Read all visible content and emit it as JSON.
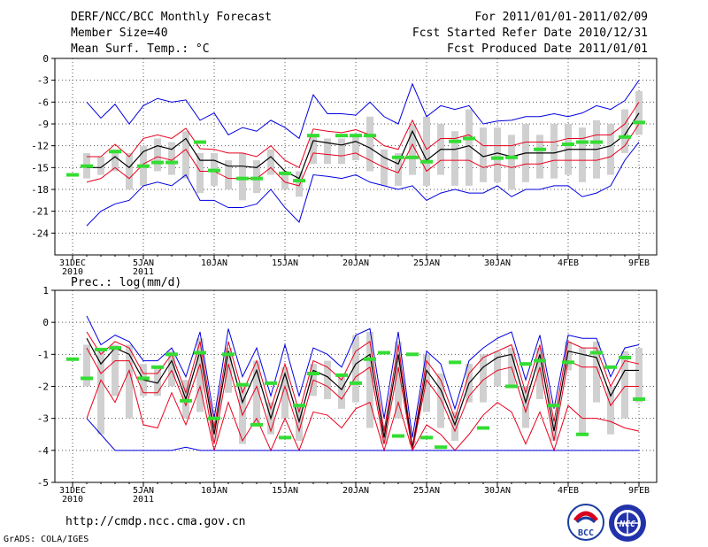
{
  "header": {
    "title": "DERF/NCC/BCC Monthly Forecast",
    "member_size": "Member Size=40",
    "variable": "Mean Surf. Temp.: °C",
    "period": "For 2011/01/01-2011/02/09",
    "started": "Fcst Started Refer Date 2010/12/31",
    "produced": "Fcst Produced Date 2011/01/01"
  },
  "footer": {
    "url": "http://cmdp.ncc.cma.gov.cn",
    "grads": "GrADS: COLA/IGES"
  },
  "logos": {
    "bcc_text": "BCC",
    "ncc_text": "NCC"
  },
  "colors": {
    "mean": "#000000",
    "spread": "#e8001c",
    "envelope": "#0000e0",
    "box": "#d0d0d0",
    "observed": "#33dd33",
    "grid": "#555555"
  },
  "chart_data": [
    {
      "type": "line",
      "title": "Mean Surf. Temp.: °C",
      "xlabel": "",
      "ylabel": "°C",
      "ylim": [
        -27,
        0
      ],
      "yticks": [
        0,
        -3,
        -6,
        -9,
        -12,
        -15,
        -18,
        -21,
        -24
      ],
      "x_tick_labels": [
        {
          "day": 1,
          "line1": "31DEC",
          "line2": "2010"
        },
        {
          "day": 6,
          "line1": "5JAN",
          "line2": "2011"
        },
        {
          "day": 11,
          "line1": "10JAN",
          "line2": ""
        },
        {
          "day": 16,
          "line1": "15JAN",
          "line2": ""
        },
        {
          "day": 21,
          "line1": "20JAN",
          "line2": ""
        },
        {
          "day": 26,
          "line1": "25JAN",
          "line2": ""
        },
        {
          "day": 31,
          "line1": "30JAN",
          "line2": ""
        },
        {
          "day": 36,
          "line1": "4FEB",
          "line2": ""
        },
        {
          "day": 41,
          "line1": "9FEB",
          "line2": ""
        }
      ],
      "days": [
        2,
        3,
        4,
        5,
        6,
        7,
        8,
        9,
        10,
        11,
        12,
        13,
        14,
        15,
        16,
        17,
        18,
        19,
        20,
        21,
        22,
        23,
        24,
        25,
        26,
        27,
        28,
        29,
        30,
        31,
        32,
        33,
        34,
        35,
        36,
        37,
        38,
        39,
        40,
        41
      ],
      "series": [
        {
          "name": "ensemble max",
          "color_key": "envelope",
          "values": [
            -6.0,
            -8.2,
            -6.3,
            -9.0,
            -6.5,
            -5.5,
            -6.0,
            -5.7,
            -8.5,
            -7.5,
            -10.5,
            -9.5,
            -10.0,
            -8.5,
            -9.5,
            -11.0,
            -5.0,
            -7.6,
            -7.6,
            -7.8,
            -6.0,
            -8.0,
            -9.0,
            -3.5,
            -8.0,
            -6.5,
            -7.0,
            -6.5,
            -9.0,
            -8.6,
            -8.5,
            -8.0,
            -8.0,
            -7.6,
            -8.0,
            -7.5,
            -6.5,
            -7.0,
            -5.8,
            -3.0
          ]
        },
        {
          "name": "upper spread",
          "color_key": "spread",
          "values": [
            -13.5,
            -13.5,
            -11.8,
            -13.5,
            -11.0,
            -10.5,
            -11.0,
            -9.6,
            -12.4,
            -12.5,
            -13.0,
            -13.0,
            -13.5,
            -12.0,
            -14.0,
            -15.0,
            -9.7,
            -10.0,
            -10.2,
            -9.8,
            -10.5,
            -12.0,
            -12.5,
            -8.5,
            -12.5,
            -11.0,
            -11.0,
            -10.5,
            -12.0,
            -12.0,
            -12.0,
            -11.5,
            -11.5,
            -11.5,
            -11.0,
            -11.0,
            -10.5,
            -10.5,
            -9.0,
            -6.0
          ]
        },
        {
          "name": "ensemble mean",
          "color_key": "mean",
          "values": [
            -15.0,
            -15.0,
            -13.5,
            -15.0,
            -12.8,
            -12.0,
            -12.5,
            -11.0,
            -14.0,
            -14.0,
            -14.8,
            -14.8,
            -15.0,
            -13.5,
            -15.5,
            -16.5,
            -11.3,
            -11.6,
            -11.9,
            -11.4,
            -12.3,
            -13.6,
            -14.5,
            -10.0,
            -14.0,
            -12.5,
            -12.5,
            -12.0,
            -13.5,
            -13.0,
            -13.5,
            -13.0,
            -13.0,
            -13.0,
            -12.5,
            -12.5,
            -12.5,
            -12.0,
            -10.5,
            -7.5
          ]
        },
        {
          "name": "lower spread",
          "color_key": "spread",
          "values": [
            -17.0,
            -16.5,
            -15.0,
            -16.5,
            -14.5,
            -13.5,
            -14.0,
            -12.5,
            -15.5,
            -15.5,
            -16.5,
            -16.5,
            -16.5,
            -15.0,
            -17.0,
            -17.5,
            -13.0,
            -13.2,
            -13.4,
            -13.0,
            -14.0,
            -15.0,
            -15.7,
            -11.8,
            -15.5,
            -14.0,
            -14.0,
            -14.0,
            -15.0,
            -14.5,
            -15.0,
            -14.5,
            -14.5,
            -14.0,
            -14.0,
            -14.0,
            -14.0,
            -13.5,
            -12.0,
            -9.0
          ]
        },
        {
          "name": "ensemble min",
          "color_key": "envelope",
          "values": [
            -23.0,
            -21.0,
            -20.0,
            -19.5,
            -17.5,
            -17.0,
            -17.5,
            -16.0,
            -19.5,
            -19.5,
            -20.5,
            -20.5,
            -20.0,
            -18.0,
            -20.5,
            -22.5,
            -16.0,
            -16.2,
            -16.5,
            -16.0,
            -17.0,
            -17.5,
            -18.0,
            -17.5,
            -19.5,
            -18.5,
            -18.0,
            -18.5,
            -18.5,
            -17.5,
            -19.0,
            -18.0,
            -18.0,
            -17.5,
            -17.5,
            -19.0,
            -18.5,
            -17.5,
            -14.0,
            -11.5
          ]
        }
      ],
      "box_range": {
        "low": [
          -16.5,
          -16.0,
          -15.5,
          -18.0,
          -17.5,
          -15.5,
          -16.0,
          -16.5,
          -18.5,
          -17.5,
          -18.0,
          -19.5,
          -18.5,
          -16.0,
          -18.0,
          -19.0,
          -14.5,
          -14.5,
          -14.5,
          -14.0,
          -15.5,
          -17.5,
          -17.5,
          -16.0,
          -17.5,
          -16.0,
          -17.5,
          -17.5,
          -17.0,
          -17.0,
          -18.0,
          -17.0,
          -16.5,
          -16.5,
          -16.0,
          -17.0,
          -16.5,
          -16.0,
          -13.0,
          -10.5
        ],
        "high": [
          -13.0,
          -13.5,
          -12.5,
          -13.0,
          -12.0,
          -11.0,
          -11.5,
          -10.0,
          -13.0,
          -13.0,
          -14.0,
          -13.0,
          -14.0,
          -12.5,
          -15.5,
          -15.5,
          -10.5,
          -11.0,
          -11.0,
          -10.5,
          -8.0,
          -12.5,
          -13.0,
          -9.0,
          -8.0,
          -9.0,
          -10.0,
          -7.0,
          -9.5,
          -9.5,
          -10.5,
          -9.0,
          -10.5,
          -9.0,
          -9.0,
          -9.5,
          -8.5,
          -9.0,
          -7.0,
          -4.5
        ]
      },
      "observed_days": [
        1,
        2,
        4,
        6,
        7,
        8,
        10,
        11,
        13,
        14,
        16,
        17,
        18,
        20,
        21,
        22,
        24,
        25,
        26,
        28,
        29,
        31,
        32,
        34,
        36,
        37,
        38,
        40,
        41
      ],
      "observed_values": [
        -16.0,
        -14.8,
        -12.8,
        -14.8,
        -14.3,
        -14.3,
        -11.5,
        -15.4,
        -16.5,
        -16.5,
        -15.8,
        -16.8,
        -10.6,
        -10.6,
        -10.6,
        -10.6,
        -13.6,
        -13.6,
        -14.2,
        -11.4,
        -11.0,
        -13.7,
        -13.6,
        -12.5,
        -11.8,
        -11.5,
        -11.5,
        -10.8,
        -8.8
      ]
    },
    {
      "type": "line",
      "title": "Prec.: log(mm/d)",
      "xlabel": "",
      "ylabel": "log(mm/d)",
      "ylim": [
        -5,
        1
      ],
      "yticks": [
        1,
        0,
        -1,
        -2,
        -3,
        -4,
        -5
      ],
      "x_tick_labels": [
        {
          "day": 1,
          "line1": "31DEC",
          "line2": "2010"
        },
        {
          "day": 6,
          "line1": "5JAN",
          "line2": "2011"
        },
        {
          "day": 11,
          "line1": "10JAN",
          "line2": ""
        },
        {
          "day": 16,
          "line1": "15JAN",
          "line2": ""
        },
        {
          "day": 21,
          "line1": "20JAN",
          "line2": ""
        },
        {
          "day": 26,
          "line1": "25JAN",
          "line2": ""
        },
        {
          "day": 31,
          "line1": "30JAN",
          "line2": ""
        },
        {
          "day": 36,
          "line1": "4FEB",
          "line2": ""
        },
        {
          "day": 41,
          "line1": "9FEB",
          "line2": ""
        }
      ],
      "days": [
        2,
        3,
        4,
        5,
        6,
        7,
        8,
        9,
        10,
        11,
        12,
        13,
        14,
        15,
        16,
        17,
        18,
        19,
        20,
        21,
        22,
        23,
        24,
        25,
        26,
        27,
        28,
        29,
        30,
        31,
        32,
        33,
        34,
        35,
        36,
        37,
        38,
        39,
        40,
        41
      ],
      "series": [
        {
          "name": "ensemble max",
          "color_key": "envelope",
          "values": [
            0.2,
            -0.7,
            -0.4,
            -0.6,
            -1.2,
            -1.2,
            -0.8,
            -1.7,
            -0.3,
            -3.0,
            -0.2,
            -1.7,
            -0.8,
            -2.3,
            -0.7,
            -2.3,
            -0.8,
            -1.0,
            -1.4,
            -0.4,
            -0.2,
            -3.0,
            -0.3,
            -3.6,
            -0.9,
            -1.3,
            -2.7,
            -1.2,
            -0.8,
            -0.5,
            -0.3,
            -1.8,
            -0.4,
            -2.7,
            -0.4,
            -0.5,
            -0.5,
            -1.7,
            -0.8,
            -0.7
          ]
        },
        {
          "name": "upper spread",
          "color_key": "spread",
          "values": [
            -0.3,
            -1.0,
            -0.6,
            -0.8,
            -1.6,
            -1.6,
            -1.0,
            -2.2,
            -0.6,
            -3.3,
            -0.6,
            -2.2,
            -1.2,
            -2.7,
            -1.3,
            -2.8,
            -1.2,
            -1.4,
            -1.8,
            -0.9,
            -0.6,
            -3.4,
            -0.7,
            -3.9,
            -1.2,
            -1.8,
            -3.0,
            -1.6,
            -1.1,
            -0.9,
            -0.7,
            -2.2,
            -0.7,
            -3.1,
            -0.6,
            -0.8,
            -0.8,
            -2.0,
            -1.2,
            -1.3
          ]
        },
        {
          "name": "ensemble mean",
          "color_key": "mean",
          "values": [
            -0.5,
            -1.3,
            -0.8,
            -1.0,
            -1.8,
            -1.9,
            -1.2,
            -2.4,
            -0.9,
            -3.5,
            -0.9,
            -2.5,
            -1.5,
            -3.0,
            -1.6,
            -3.1,
            -1.5,
            -1.7,
            -2.1,
            -1.3,
            -1.0,
            -3.6,
            -1.0,
            -3.95,
            -1.5,
            -2.1,
            -3.2,
            -1.9,
            -1.4,
            -1.1,
            -1.0,
            -2.5,
            -1.0,
            -3.4,
            -0.9,
            -1.0,
            -1.1,
            -2.3,
            -1.5,
            -1.5
          ]
        },
        {
          "name": "lower spread",
          "color_key": "spread",
          "values": [
            -0.8,
            -1.6,
            -1.2,
            -1.2,
            -2.2,
            -2.2,
            -1.5,
            -2.6,
            -1.3,
            -3.8,
            -1.3,
            -2.9,
            -2.0,
            -3.4,
            -2.0,
            -3.4,
            -1.8,
            -2.0,
            -2.4,
            -1.7,
            -1.4,
            -3.8,
            -1.4,
            -4.0,
            -1.8,
            -2.4,
            -3.4,
            -2.3,
            -1.8,
            -1.5,
            -1.4,
            -2.8,
            -1.4,
            -3.7,
            -1.2,
            -1.4,
            -1.4,
            -2.6,
            -2.0,
            -2.0
          ]
        },
        {
          "name": "lower spread 2",
          "color_key": "spread",
          "values": [
            -3.0,
            -1.8,
            -2.5,
            -1.5,
            -3.2,
            -3.3,
            -2.2,
            -3.2,
            -2.0,
            -4.0,
            -2.5,
            -3.7,
            -3.0,
            -4.0,
            -3.0,
            -4.0,
            -2.8,
            -2.9,
            -3.3,
            -2.7,
            -2.5,
            -4.0,
            -2.5,
            -4.0,
            -3.2,
            -3.5,
            -4.0,
            -3.5,
            -2.9,
            -2.5,
            -2.8,
            -3.8,
            -2.8,
            -4.0,
            -2.6,
            -3.0,
            -3.0,
            -3.1,
            -3.3,
            -3.4
          ]
        },
        {
          "name": "ensemble min",
          "color_key": "envelope",
          "values": [
            -3.0,
            -3.5,
            -4.0,
            -4.0,
            -4.0,
            -4.0,
            -4.0,
            -3.9,
            -4.0,
            -4.0,
            -4.0,
            -4.0,
            -4.0,
            -4.0,
            -4.0,
            -4.0,
            -4.0,
            -4.0,
            -4.0,
            -4.0,
            -4.0,
            -4.0,
            -4.0,
            -4.0,
            -4.0,
            -4.0,
            -4.0,
            -4.0,
            -4.0,
            -4.0,
            -4.0,
            -4.0,
            -4.0,
            -4.0,
            -4.0,
            -4.0,
            -4.0,
            -4.0,
            -4.0,
            -4.0
          ]
        }
      ],
      "box_range": {
        "low": [
          -2.0,
          -3.5,
          -2.3,
          -3.0,
          -2.3,
          -2.3,
          -2.0,
          -3.0,
          -2.8,
          -3.7,
          -2.2,
          -3.8,
          -3.2,
          -3.5,
          -3.0,
          -3.7,
          -2.3,
          -2.4,
          -2.7,
          -2.5,
          -3.3,
          -3.8,
          -3.0,
          -3.8,
          -2.8,
          -3.3,
          -3.7,
          -2.5,
          -2.5,
          -2.0,
          -2.0,
          -3.3,
          -2.4,
          -3.7,
          -1.5,
          -3.5,
          -2.5,
          -3.5,
          -3.0,
          -2.5
        ],
        "high": [
          -0.7,
          -0.8,
          -0.7,
          -0.7,
          -1.3,
          -1.4,
          -0.9,
          -1.8,
          -0.5,
          -3.1,
          -0.8,
          -2.0,
          -1.2,
          -2.5,
          -1.4,
          -2.6,
          -1.3,
          -1.2,
          -1.6,
          -0.4,
          -0.3,
          -3.2,
          -0.6,
          -3.7,
          -1.0,
          -1.6,
          -2.8,
          -1.3,
          -1.0,
          -0.9,
          -0.8,
          -2.0,
          -0.8,
          -3.0,
          -0.6,
          -0.8,
          -0.6,
          -2.0,
          -0.9,
          -0.8
        ]
      },
      "observed_days": [
        1,
        2,
        3,
        4,
        6,
        7,
        8,
        9,
        10,
        11,
        12,
        13,
        14,
        15,
        16,
        17,
        18,
        20,
        21,
        22,
        23,
        24,
        25,
        26,
        27,
        28,
        30,
        32,
        33,
        34,
        35,
        36,
        37,
        38,
        39,
        40,
        41
      ],
      "observed_values": [
        -1.15,
        -1.75,
        -0.85,
        -0.8,
        -1.75,
        -1.4,
        -1.0,
        -2.45,
        -0.95,
        -3.0,
        -1.0,
        -1.95,
        -3.2,
        -1.9,
        -3.6,
        -2.6,
        -1.6,
        -1.65,
        -1.9,
        -1.15,
        -0.95,
        -3.55,
        -1.0,
        -3.6,
        -3.9,
        -1.25,
        -3.3,
        -2.0,
        -1.3,
        -1.2,
        -2.6,
        -1.25,
        -3.5,
        -0.95,
        -1.4,
        -1.1,
        -2.4
      ]
    }
  ]
}
